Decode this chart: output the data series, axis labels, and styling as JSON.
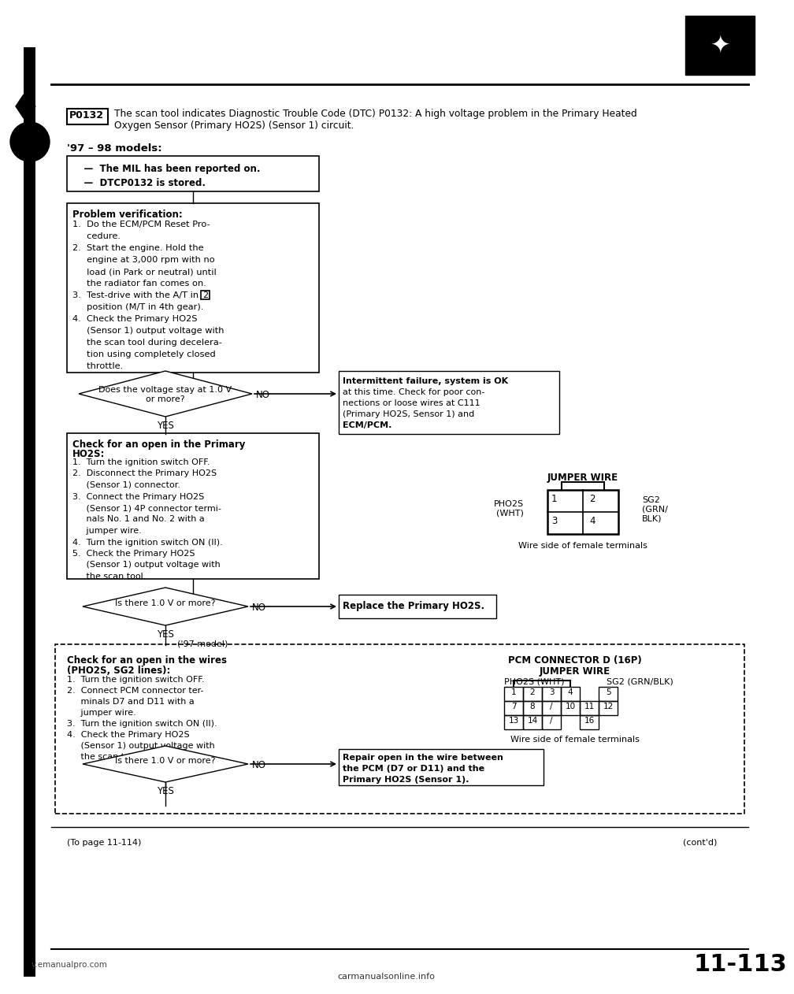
{
  "page_bg": "#ffffff",
  "title_code": "P0132",
  "title_text1": "The scan tool indicates Diagnostic Trouble Code (DTC) P0132: A high voltage problem in the Primary Heated",
  "title_text2": "Oxygen Sensor (Primary HO2S) (Sensor 1) circuit.",
  "section_label": "'97 – 98 models:",
  "box1_lines": [
    "    —  The MIL has been reported on.",
    "    —  DTCP0132 is stored."
  ],
  "box2_title": "Problem verification:",
  "box2_lines": [
    "1.  Do the ECM/PCM Reset Pro-",
    "     cedure.",
    "2.  Start the engine. Hold the",
    "     engine at 3,000 rpm with no",
    "     load (in Park or neutral) until",
    "     the radiator fan comes on.",
    "3.  Test-drive with the A/T in",
    "     position (M/T in 4th gear).",
    "4.  Check the Primary HO2S",
    "     (Sensor 1) output voltage with",
    "     the scan tool during decelera-",
    "     tion using completely closed",
    "     throttle."
  ],
  "diamond1_text_a": "Does the voltage stay at 1.0 V",
  "diamond1_text_b": "or more?",
  "no_label": "NO",
  "yes_label": "YES",
  "intermittent_box_lines": [
    "Intermittent failure, system is OK",
    "at this time. Check for poor con-",
    "nections or loose wires at C111",
    "(Primary HO2S, Sensor 1) and",
    "ECM/PCM."
  ],
  "box3_title1": "Check for an open in the Primary",
  "box3_title2": "HO2S:",
  "box3_lines": [
    "1.  Turn the ignition switch OFF.",
    "2.  Disconnect the Primary HO2S",
    "     (Sensor 1) connector.",
    "3.  Connect the Primary HO2S",
    "     (Sensor 1) 4P connector termi-",
    "     nals No. 1 and No. 2 with a",
    "     jumper wire.",
    "4.  Turn the ignition switch ON (II).",
    "5.  Check the Primary HO2S",
    "     (Sensor 1) output voltage with",
    "     the scan tool."
  ],
  "jumper_wire_label": "JUMPER WIRE",
  "pho2s_wht_label": "PHO2S\n(WHT)",
  "sg2_grn_blk_label": "SG2\n(GRN/\nBLK)",
  "wire_side_label": "Wire side of female terminals",
  "diamond2_text": "Is there 1.0 V or more?",
  "replace_box": "Replace the Primary HO2S.",
  "model97_label": "('97 model)",
  "dashed_box_title1": "Check for an open in the wires",
  "dashed_box_title2": "(PHO2S, SG2 lines):",
  "dashed_box_lines": [
    "1.  Turn the ignition switch OFF.",
    "2.  Connect PCM connector ter-",
    "     minals D7 and D11 with a",
    "     jumper wire.",
    "3.  Turn the ignition switch ON (II).",
    "4.  Check the Primary HO2S",
    "     (Sensor 1) output voltage with",
    "     the scan tool."
  ],
  "pcm_connector_label": "PCM CONNECTOR D (16P)",
  "jumper_wire_label2": "JUMPER WIRE",
  "pho2s_wht_label2": "PHO2S (WHT)",
  "sg2_grn_blk_label2": "SG2 (GRN/BLK)",
  "wire_side_label2": "Wire side of female terminals",
  "diamond3_text": "Is there 1.0 V or more?",
  "repair_box_lines": [
    "Repair open in the wire between",
    "the PCM (D7 or D11) and the",
    "Primary HO2S (Sensor 1)."
  ],
  "to_page": "(To page 11-114)",
  "contd": "(cont'd)",
  "page_num": "11-113",
  "footer_left": "v.emanualpro.com",
  "footer_right": "carmanualsonline.info",
  "logo_color": "#000000"
}
